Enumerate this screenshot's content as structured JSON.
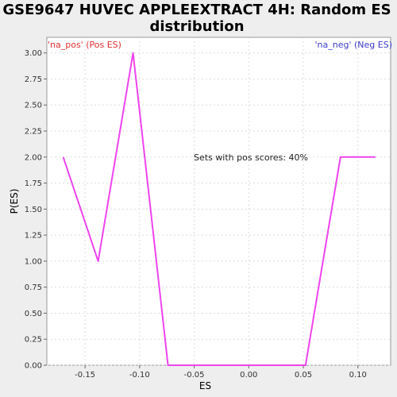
{
  "chart_data": {
    "type": "line",
    "title": "GSE9647 HUVEC APPLEEXTRACT 4H: Random ES distribution",
    "xlabel": "ES",
    "ylabel": "P(ES)",
    "xlim": [
      -0.185,
      0.13
    ],
    "ylim": [
      0,
      3.15
    ],
    "x_ticks": [
      "-0.15",
      "-0.10",
      "-0.05",
      "0.00",
      "0.05",
      "0.10"
    ],
    "x_tick_values": [
      -0.15,
      -0.1,
      -0.05,
      0.0,
      0.05,
      0.1
    ],
    "y_ticks": [
      "0.00",
      "0.25",
      "0.50",
      "0.75",
      "1.00",
      "1.25",
      "1.50",
      "1.75",
      "2.00",
      "2.25",
      "2.50",
      "2.75",
      "3.00"
    ],
    "y_tick_values": [
      0,
      0.25,
      0.5,
      0.75,
      1.0,
      1.25,
      1.5,
      1.75,
      2.0,
      2.25,
      2.5,
      2.75,
      3.0
    ],
    "grid": true,
    "series": [
      {
        "color": "#ee44ee",
        "x": [
          -0.17,
          -0.138,
          -0.106,
          -0.074,
          -0.042,
          -0.01,
          0.021,
          0.052,
          0.084,
          0.116
        ],
        "y": [
          2.0,
          1.0,
          3.0,
          0.0,
          0.0,
          0.0,
          0.0,
          0.0,
          2.0,
          2.0
        ]
      }
    ],
    "legend": {
      "pos_label": "'na_pos' (Pos ES)",
      "neg_label": "'na_neg' (Neg ES)",
      "pos_color": "#e03030",
      "neg_color": "#3b3bcc"
    },
    "annotation": "Sets with pos scores: 40%"
  }
}
